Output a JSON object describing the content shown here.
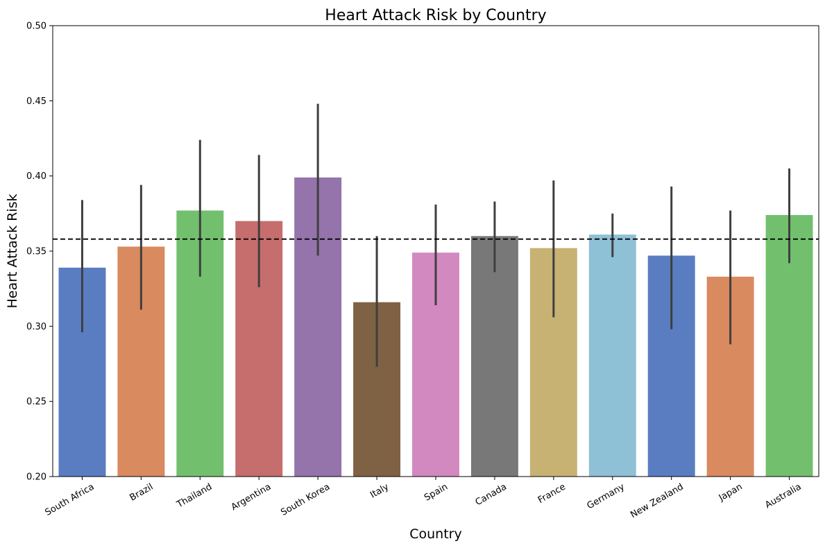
{
  "chart_data": {
    "type": "bar",
    "title": "Heart Attack Risk by Country",
    "xlabel": "Country",
    "ylabel": "Heart Attack Risk",
    "ylim": [
      0.2,
      0.5
    ],
    "yticks": [
      0.2,
      0.25,
      0.3,
      0.35,
      0.4,
      0.45,
      0.5
    ],
    "ytick_labels": [
      "0.20",
      "0.25",
      "0.30",
      "0.35",
      "0.40",
      "0.45",
      "0.50"
    ],
    "reference_line": 0.358,
    "grid": false,
    "categories": [
      "South Africa",
      "Brazil",
      "Thailand",
      "Argentina",
      "South Korea",
      "Italy",
      "Spain",
      "Canada",
      "France",
      "Germany",
      "New Zealand",
      "Japan",
      "Australia"
    ],
    "values": [
      0.339,
      0.353,
      0.377,
      0.37,
      0.399,
      0.316,
      0.349,
      0.36,
      0.352,
      0.361,
      0.347,
      0.333,
      0.374
    ],
    "error_low": [
      0.296,
      0.311,
      0.333,
      0.326,
      0.347,
      0.273,
      0.314,
      0.336,
      0.306,
      0.346,
      0.298,
      0.288,
      0.342
    ],
    "error_high": [
      0.384,
      0.394,
      0.424,
      0.414,
      0.448,
      0.36,
      0.381,
      0.383,
      0.397,
      0.375,
      0.393,
      0.377,
      0.405
    ],
    "colors": [
      "#5a7dc2",
      "#d98a5f",
      "#72c06e",
      "#c66d6d",
      "#9474ab",
      "#7f6244",
      "#d289c0",
      "#787878",
      "#c7b274",
      "#8ec0d6",
      "#5a7dc2",
      "#d98a5f",
      "#72c06e"
    ],
    "error_color": "#3f3f3f",
    "reference_line_color": "#000000"
  }
}
